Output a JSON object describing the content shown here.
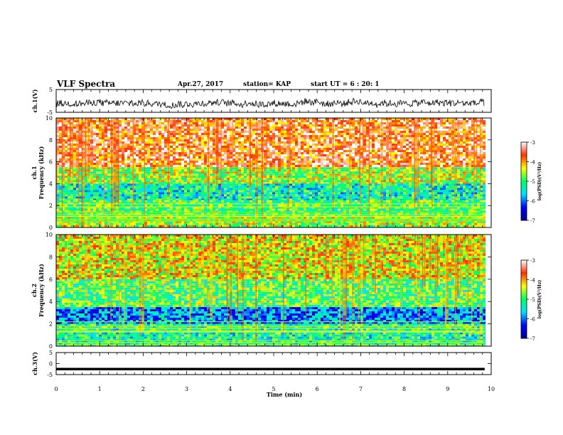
{
  "header": {
    "title": "VLF Spectra",
    "date": "Apr.27, 2017",
    "station": "station= KAP",
    "start": "start  UT  =   6 : 20: 1"
  },
  "colors": {
    "spectrum": [
      "#000090",
      "#0000ff",
      "#00e0ff",
      "#00ff60",
      "#ffff00",
      "#ff3000",
      "#ffffff"
    ]
  },
  "chart_data": [
    {
      "type": "line",
      "ylabel": "ch.1(V)",
      "ylim": [
        -5,
        5
      ],
      "yticks": [
        "5",
        "-5"
      ],
      "description_level": "waveform centred near -1 V with roughly ±2 V fluctuation"
    },
    {
      "type": "heatmap",
      "ylabel": "ch.1\nFrequency (kHz)",
      "ylim": [
        0,
        10
      ],
      "yticks": [
        "0",
        "2",
        "4",
        "6",
        "8",
        "10"
      ],
      "colorbar": {
        "label": "log(PSD)(V²/Hz)",
        "range": [
          -7,
          -3
        ],
        "ticks": [
          "-3",
          "-4",
          "-5",
          "-6",
          "-7"
        ]
      },
      "bands": [
        {
          "from_khz": 5.5,
          "to_khz": 10,
          "level": -3.6
        },
        {
          "from_khz": 4.0,
          "to_khz": 5.5,
          "level": -4.6
        },
        {
          "from_khz": 2.5,
          "to_khz": 4.0,
          "level": -5.3
        },
        {
          "from_khz": 1.0,
          "to_khz": 2.5,
          "level": -4.9
        },
        {
          "from_khz": 0.0,
          "to_khz": 1.0,
          "level": -4.6
        }
      ]
    },
    {
      "type": "heatmap",
      "ylabel": "ch.2\nFrequency (kHz)",
      "ylim": [
        0,
        10
      ],
      "yticks": [
        "0",
        "2",
        "4",
        "6",
        "8",
        "10"
      ],
      "colorbar": {
        "label": "log(PSD)(V²/Hz)",
        "range": [
          -7,
          -3
        ],
        "ticks": [
          "-3",
          "-4",
          "-5",
          "-6",
          "-7"
        ]
      },
      "bands": [
        {
          "from_khz": 6.0,
          "to_khz": 10,
          "level": -4.3
        },
        {
          "from_khz": 3.5,
          "to_khz": 6.0,
          "level": -4.9
        },
        {
          "from_khz": 2.0,
          "to_khz": 3.5,
          "level": -5.9
        },
        {
          "from_khz": 0.0,
          "to_khz": 2.0,
          "level": -5.2
        }
      ]
    },
    {
      "type": "line",
      "ylabel": "ch.3(V)",
      "ylim": [
        -5,
        5
      ],
      "yticks": [
        "5",
        "0",
        "-5"
      ],
      "constant_value": -2.5
    }
  ],
  "xaxis": {
    "label": "Time (min)",
    "range": [
      0,
      10
    ],
    "ticks": [
      "0",
      "1",
      "2",
      "3",
      "4",
      "5",
      "6",
      "7",
      "8",
      "9",
      "10"
    ]
  }
}
